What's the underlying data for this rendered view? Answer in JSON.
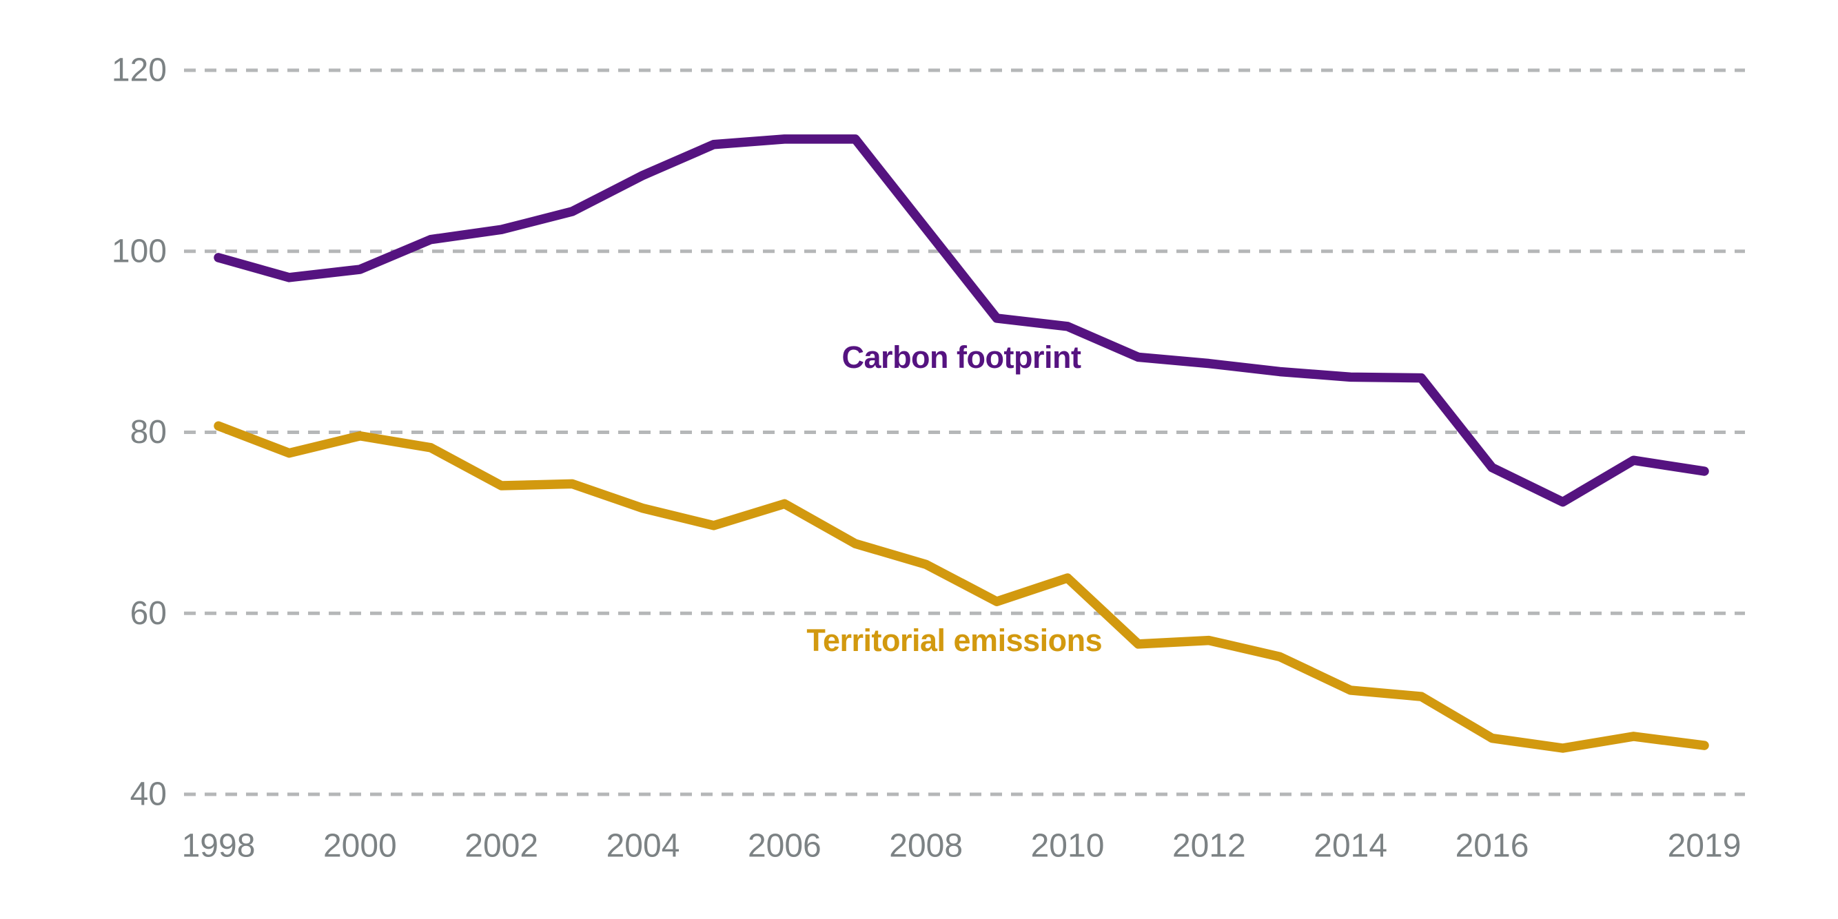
{
  "chart_data": {
    "type": "line",
    "x": [
      1998,
      1999,
      2000,
      2001,
      2002,
      2003,
      2004,
      2005,
      2006,
      2007,
      2008,
      2009,
      2010,
      2011,
      2012,
      2013,
      2014,
      2015,
      2016,
      2017,
      2018,
      2019
    ],
    "series": [
      {
        "name": "Carbon footprint",
        "color": "#551380",
        "values": [
          99.3,
          97.1,
          98.0,
          101.3,
          102.4,
          104.4,
          108.4,
          111.8,
          112.4,
          112.4,
          102.5,
          92.6,
          91.7,
          88.3,
          87.6,
          86.7,
          86.1,
          86.0,
          76.1,
          72.3,
          76.9,
          75.7
        ],
        "label_anchor": {
          "year": 2008.5,
          "value": 88.3
        }
      },
      {
        "name": "Territorial emissions",
        "color": "#d2990f",
        "values": [
          80.7,
          77.7,
          79.6,
          78.3,
          74.1,
          74.3,
          71.6,
          69.7,
          72.1,
          67.7,
          65.4,
          61.3,
          63.9,
          56.6,
          57.0,
          55.2,
          51.5,
          50.8,
          46.2,
          45.1,
          46.4,
          45.4
        ],
        "label_anchor": {
          "year": 2008.4,
          "value": 57.0
        }
      }
    ],
    "ylim": [
      40,
      120
    ],
    "y_gridlines": [
      40,
      60,
      80,
      100,
      120
    ],
    "y_tick_labels": [
      "40",
      "60",
      "80",
      "100",
      "120"
    ],
    "x_tick_years": [
      1998,
      2000,
      2002,
      2004,
      2006,
      2008,
      2010,
      2012,
      2014,
      2016,
      2019
    ],
    "x_tick_labels": [
      "1998",
      "2000",
      "2002",
      "2004",
      "2006",
      "2008",
      "2010",
      "2012",
      "2014",
      "2016",
      "2019"
    ],
    "grid": "horizontal dashed, no axis lines",
    "legend_position": "inline labels next to lines",
    "background_color": "#ffffff",
    "grid_color": "#b5b7b8",
    "tick_label_color": "#7c8284"
  }
}
